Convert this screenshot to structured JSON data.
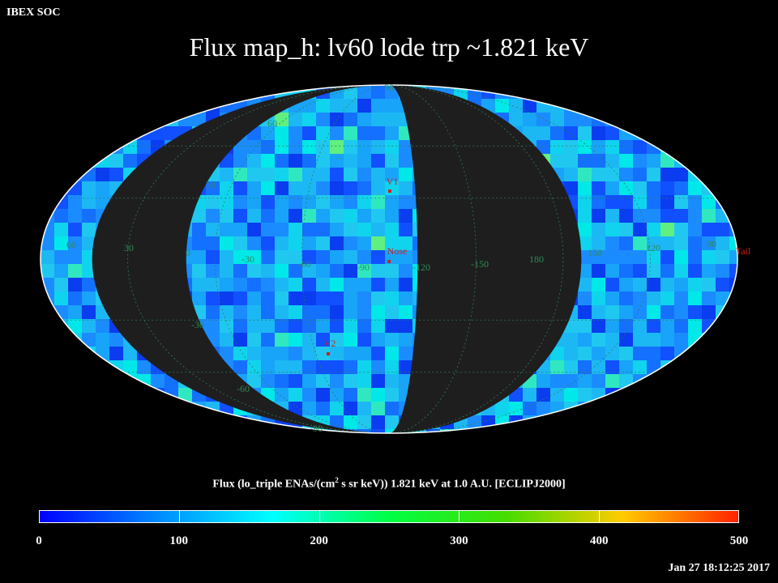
{
  "header": {
    "corner_label": "IBEX SOC",
    "title": "Flux   map_h: lv60 lode trp ~1.821 keV"
  },
  "map": {
    "projection": "Mollweide",
    "grid_labels": {
      "longitude": [
        "60",
        "30",
        "0",
        "-30",
        "-60",
        "-90",
        "-120",
        "-150",
        "180",
        "150",
        "120",
        "90"
      ],
      "latitude": [
        "90",
        "60",
        "30",
        "-30",
        "-60",
        "-90"
      ]
    },
    "markers": [
      {
        "label": "V1",
        "color": "#cc2222"
      },
      {
        "label": "Nose",
        "color": "#cc2222"
      },
      {
        "label": "V2",
        "color": "#cc2222"
      },
      {
        "label": "Tail",
        "color": "#cc2222"
      }
    ],
    "colors": {
      "no_data": "#1e1e1e",
      "grid": "#2e7d5a",
      "grid_label": "#2e8b57",
      "marker": "#cc2222"
    }
  },
  "colorbar": {
    "label_pre": "Flux (lo_triple ENAs/(cm",
    "label_sup": "2",
    "label_post": " s sr keV))  1.821 keV at 1.0 A.U. [ECLIPJ2000]",
    "ticks": [
      "0",
      "100",
      "200",
      "300",
      "400",
      "500"
    ],
    "range": [
      0,
      500
    ],
    "colormap": [
      "#0000ff",
      "#0088ff",
      "#00ffff",
      "#00ff44",
      "#44dd00",
      "#ffcc00",
      "#ff2200"
    ]
  },
  "timestamp": "Jan 27 18:12:25 2017"
}
